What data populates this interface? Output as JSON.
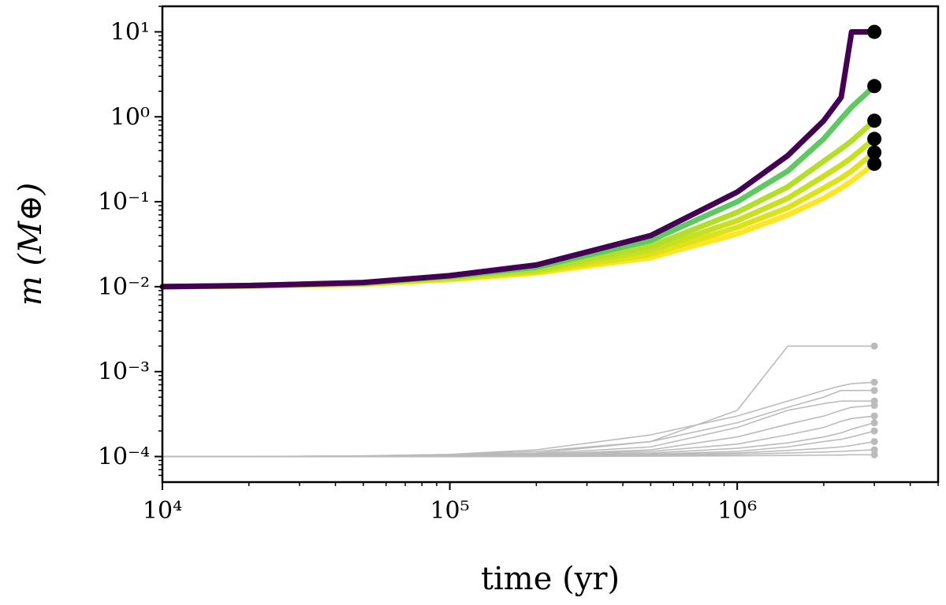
{
  "chart_data": {
    "type": "line",
    "xlabel": "time (yr)",
    "ylabel": "m (M⊕)",
    "xlog": true,
    "ylog": true,
    "xlim": [
      10000,
      5000000
    ],
    "ylim": [
      5e-05,
      20
    ],
    "xticks": [
      {
        "value": 10000,
        "label": "10⁴"
      },
      {
        "value": 100000,
        "label": "10⁵"
      },
      {
        "value": 1000000,
        "label": "10⁶"
      }
    ],
    "yticks": [
      {
        "value": 0.0001,
        "label": "10⁻⁴"
      },
      {
        "value": 0.001,
        "label": "10⁻³"
      },
      {
        "value": 0.01,
        "label": "10⁻²"
      },
      {
        "value": 0.1,
        "label": "10⁻¹"
      },
      {
        "value": 1,
        "label": "10⁰"
      },
      {
        "value": 10,
        "label": "10¹"
      }
    ],
    "xminorticks": [
      20000,
      30000,
      40000,
      50000,
      60000,
      70000,
      80000,
      90000,
      200000,
      300000,
      400000,
      500000,
      600000,
      700000,
      800000,
      900000,
      2000000,
      3000000,
      4000000,
      5000000
    ],
    "yminorticks": [
      6e-05,
      7e-05,
      8e-05,
      9e-05,
      0.0002,
      0.0003,
      0.0004,
      0.0005,
      0.0006,
      0.0007,
      0.0008,
      0.0009,
      0.002,
      0.003,
      0.004,
      0.005,
      0.006,
      0.007,
      0.008,
      0.009,
      0.02,
      0.03,
      0.04,
      0.05,
      0.06,
      0.07,
      0.08,
      0.09,
      0.2,
      0.3,
      0.4,
      0.5,
      0.6,
      0.7,
      0.8,
      0.9,
      2,
      3,
      4,
      5,
      6,
      7,
      8,
      9,
      20
    ],
    "x": [
      10000,
      20000,
      50000,
      100000,
      200000,
      500000,
      1000000,
      1500000,
      2000000,
      2300000,
      2500000,
      3000000
    ],
    "series": [
      {
        "color": "#bbbbbb",
        "marker_color": "#bbbbbb",
        "values": [
          0.0001,
          0.0001,
          0.000102,
          0.000105,
          0.000115,
          0.00015,
          0.00035,
          0.002,
          0.002,
          0.002,
          0.002,
          0.002
        ]
      },
      {
        "color": "#bbbbbb",
        "marker_color": "#bbbbbb",
        "values": [
          0.0001,
          0.0001,
          0.000102,
          0.000106,
          0.00012,
          0.00018,
          0.0003,
          0.00045,
          0.0006,
          0.00068,
          0.00072,
          0.00075
        ]
      },
      {
        "color": "#bbbbbb",
        "marker_color": "#bbbbbb",
        "values": [
          0.0001,
          0.0001,
          0.000101,
          0.000104,
          0.00011,
          0.00015,
          0.00025,
          0.00038,
          0.0005,
          0.0006,
          0.0006,
          0.0006
        ]
      },
      {
        "color": "#bbbbbb",
        "marker_color": "#bbbbbb",
        "values": [
          0.0001,
          0.0001,
          0.000101,
          0.000103,
          0.000108,
          0.00013,
          0.00022,
          0.00035,
          0.00042,
          0.00045,
          0.00045,
          0.00045
        ]
      },
      {
        "color": "#bbbbbb",
        "marker_color": "#bbbbbb",
        "values": [
          0.0001,
          0.0001,
          0.0001,
          0.000102,
          0.000106,
          0.00012,
          0.00017,
          0.00024,
          0.0003,
          0.00035,
          0.00038,
          0.0004
        ]
      },
      {
        "color": "#bbbbbb",
        "marker_color": "#bbbbbb",
        "values": [
          0.0001,
          0.0001,
          0.0001,
          0.000102,
          0.000105,
          0.000115,
          0.00014,
          0.00018,
          0.00022,
          0.00026,
          0.00028,
          0.0003
        ]
      },
      {
        "color": "#bbbbbb",
        "marker_color": "#bbbbbb",
        "values": [
          0.0001,
          0.0001,
          0.0001,
          0.000101,
          0.000104,
          0.00011,
          0.000125,
          0.000145,
          0.00017,
          0.00019,
          0.00021,
          0.00025
        ]
      },
      {
        "color": "#bbbbbb",
        "marker_color": "#bbbbbb",
        "values": [
          0.0001,
          0.0001,
          0.0001,
          0.000101,
          0.000103,
          0.000107,
          0.000115,
          0.00013,
          0.00015,
          0.00016,
          0.00017,
          0.0002
        ]
      },
      {
        "color": "#bbbbbb",
        "marker_color": "#bbbbbb",
        "values": [
          0.0001,
          0.0001,
          0.0001,
          0.0001,
          0.000102,
          0.000105,
          0.00011,
          0.000118,
          0.000125,
          0.00013,
          0.000135,
          0.00015
        ]
      },
      {
        "color": "#bbbbbb",
        "marker_color": "#bbbbbb",
        "values": [
          0.0001,
          0.0001,
          0.0001,
          0.0001,
          0.000101,
          0.000103,
          0.000106,
          0.00011,
          0.000113,
          0.000115,
          0.000117,
          0.00012
        ]
      },
      {
        "color": "#bbbbbb",
        "marker_color": "#bbbbbb",
        "values": [
          0.0001,
          0.0001,
          0.0001,
          0.0001,
          0.0001,
          0.000101,
          0.000102,
          0.000103,
          0.000104,
          0.000104,
          0.000105,
          0.000105
        ]
      },
      {
        "color": "#fde725",
        "marker_color": "#000000",
        "values": [
          0.01,
          0.0102,
          0.0107,
          0.0121,
          0.0145,
          0.022,
          0.042,
          0.07,
          0.11,
          0.145,
          0.175,
          0.28
        ]
      },
      {
        "color": "#dde318",
        "marker_color": "#000000",
        "values": [
          0.01,
          0.0102,
          0.0108,
          0.0124,
          0.015,
          0.024,
          0.05,
          0.085,
          0.145,
          0.19,
          0.23,
          0.38
        ]
      },
      {
        "color": "#c8e020",
        "marker_color": "#000000",
        "values": [
          0.01,
          0.0102,
          0.0109,
          0.0127,
          0.0155,
          0.027,
          0.06,
          0.11,
          0.2,
          0.27,
          0.33,
          0.55
        ]
      },
      {
        "color": "#b5de2b",
        "marker_color": "#000000",
        "values": [
          0.01,
          0.0103,
          0.011,
          0.013,
          0.016,
          0.03,
          0.075,
          0.15,
          0.3,
          0.42,
          0.52,
          0.9
        ]
      },
      {
        "color": "#5ec962",
        "marker_color": "#000000",
        "values": [
          0.01,
          0.0103,
          0.0111,
          0.0132,
          0.017,
          0.035,
          0.1,
          0.23,
          0.55,
          0.95,
          1.3,
          2.3
        ]
      },
      {
        "color": "#440154",
        "marker_color": "#000000",
        "values": [
          0.01,
          0.0103,
          0.0112,
          0.0135,
          0.018,
          0.04,
          0.13,
          0.35,
          0.9,
          1.7,
          10,
          10
        ]
      }
    ]
  }
}
